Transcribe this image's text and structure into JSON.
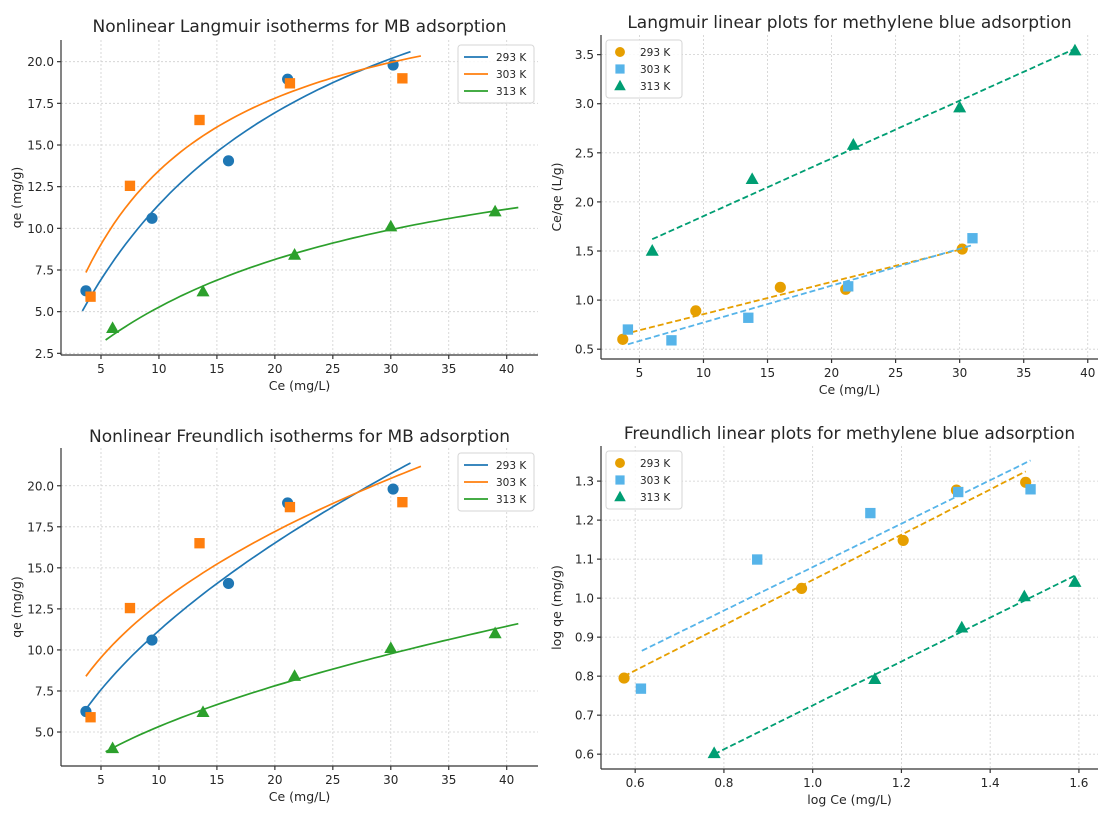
{
  "figure": {
    "description": "Four-panel figure of methylene blue adsorption isotherms"
  },
  "chart_data": [
    {
      "id": "langmuir-nonlinear",
      "type": "scatter",
      "title": "Nonlinear Langmuir isotherms for MB adsorption",
      "xlabel": "Ce (mg/L)",
      "ylabel": "qe (mg/g)",
      "xlim": [
        1.55,
        42.7
      ],
      "ylim": [
        2.4,
        21.3
      ],
      "xticks": [
        5,
        10,
        15,
        20,
        25,
        30,
        35,
        40
      ],
      "xtick_labels": [
        "5",
        "10",
        "15",
        "20",
        "25",
        "30",
        "35",
        "40"
      ],
      "yticks": [
        2.5,
        5.0,
        7.5,
        10.0,
        12.5,
        15.0,
        17.5,
        20.0
      ],
      "ytick_labels": [
        "2.5",
        "5.0",
        "7.5",
        "10.0",
        "12.5",
        "15.0",
        "17.5",
        "20.0"
      ],
      "grid": true,
      "legend": {
        "placement": "top-right",
        "style": "line"
      },
      "fit_model": "langmuir",
      "series": [
        {
          "name": "293 K",
          "color": "#1f77b4",
          "marker": "circle",
          "x": [
            3.7,
            9.4,
            16.0,
            21.1,
            30.2
          ],
          "y": [
            6.25,
            10.6,
            14.05,
            18.95,
            19.8
          ],
          "fit": {
            "qm": 32.7,
            "K": 0.0537,
            "x_range": [
              3.4,
              31.7
            ]
          }
        },
        {
          "name": "303 K",
          "color": "#ff7f0e",
          "marker": "square",
          "x": [
            4.1,
            7.5,
            13.5,
            21.3,
            31.0
          ],
          "y": [
            5.9,
            12.55,
            16.5,
            18.7,
            19.0
          ],
          "fit": {
            "qm": 26.3,
            "K": 0.1048,
            "x_range": [
              3.7,
              32.6
            ]
          }
        },
        {
          "name": "313 K",
          "color": "#2ca02c",
          "marker": "triangle",
          "x": [
            6.0,
            13.8,
            21.7,
            30.0,
            39.0
          ],
          "y": [
            4.0,
            6.2,
            8.4,
            10.1,
            11.0
          ],
          "fit": {
            "qm": 17.73,
            "K": 0.04235,
            "x_range": [
              5.4,
              41.0
            ]
          }
        }
      ]
    },
    {
      "id": "langmuir-linear",
      "type": "scatter",
      "title": "Langmuir linear plots for methylene blue adsorption",
      "xlabel": "Ce (mg/L)",
      "ylabel": "Ce/qe (L/g)",
      "xlim": [
        2.0,
        40.8
      ],
      "ylim": [
        0.4,
        3.7
      ],
      "xticks": [
        5,
        10,
        15,
        20,
        25,
        30,
        35,
        40
      ],
      "xtick_labels": [
        "5",
        "10",
        "15",
        "20",
        "25",
        "30",
        "35",
        "40"
      ],
      "yticks": [
        0.5,
        1.0,
        1.5,
        2.0,
        2.5,
        3.0,
        3.5
      ],
      "ytick_labels": [
        "0.5",
        "1.0",
        "1.5",
        "2.0",
        "2.5",
        "3.0",
        "3.5"
      ],
      "grid": true,
      "legend": {
        "placement": "top-left",
        "style": "marker"
      },
      "fit_model": "linear",
      "series": [
        {
          "name": "293 K",
          "color": "#e69f00",
          "marker": "circle",
          "x": [
            3.7,
            9.4,
            16.0,
            21.1,
            30.2
          ],
          "y": [
            0.6,
            0.89,
            1.13,
            1.11,
            1.52
          ],
          "fit": {
            "slope": 0.0328,
            "intercept": 0.529,
            "x_range": [
              3.7,
              30.2
            ]
          }
        },
        {
          "name": "303 K",
          "color": "#56b4e9",
          "marker": "square",
          "x": [
            4.1,
            7.5,
            13.5,
            21.3,
            31.0
          ],
          "y": [
            0.7,
            0.59,
            0.82,
            1.14,
            1.63
          ],
          "fit": {
            "slope": 0.03755,
            "intercept": 0.396,
            "x_range": [
              4.1,
              31.0
            ]
          }
        },
        {
          "name": "313 K",
          "color": "#009e73",
          "marker": "triangle",
          "x": [
            6.0,
            13.8,
            21.7,
            30.0,
            39.0
          ],
          "y": [
            1.5,
            2.23,
            2.58,
            2.96,
            3.54
          ],
          "fit": {
            "slope": 0.0588,
            "intercept": 1.267,
            "x_range": [
              6.0,
              39.0
            ]
          }
        }
      ]
    },
    {
      "id": "freundlich-nonlinear",
      "type": "scatter",
      "title": "Nonlinear Freundlich isotherms for MB adsorption",
      "xlabel": "Ce (mg/L)",
      "ylabel": "qe (mg/g)",
      "xlim": [
        1.55,
        42.7
      ],
      "ylim": [
        2.93,
        22.3
      ],
      "xticks": [
        5,
        10,
        15,
        20,
        25,
        30,
        35,
        40
      ],
      "xtick_labels": [
        "5",
        "10",
        "15",
        "20",
        "25",
        "30",
        "35",
        "40"
      ],
      "yticks": [
        5.0,
        7.5,
        10.0,
        12.5,
        15.0,
        17.5,
        20.0
      ],
      "ytick_labels": [
        "5.0",
        "7.5",
        "10.0",
        "12.5",
        "15.0",
        "17.5",
        "20.0"
      ],
      "grid": true,
      "legend": {
        "placement": "top-right",
        "style": "line"
      },
      "fit_model": "freundlich",
      "series": [
        {
          "name": "293 K",
          "color": "#1f77b4",
          "marker": "circle",
          "x": [
            3.7,
            9.4,
            16.0,
            21.1,
            30.2
          ],
          "y": [
            6.25,
            10.6,
            14.05,
            18.95,
            19.8
          ],
          "fit": {
            "KF": 3.066,
            "inv_n": 0.562,
            "x_range": [
              3.5,
              31.7
            ]
          }
        },
        {
          "name": "303 K",
          "color": "#ff7f0e",
          "marker": "square",
          "x": [
            4.1,
            7.5,
            13.5,
            21.3,
            31.0
          ],
          "y": [
            5.9,
            12.55,
            16.5,
            18.7,
            19.0
          ],
          "fit": {
            "KF": 4.81,
            "inv_n": 0.4255,
            "x_range": [
              3.7,
              32.6
            ]
          }
        },
        {
          "name": "313 K",
          "color": "#2ca02c",
          "marker": "triangle",
          "x": [
            6.0,
            13.8,
            21.7,
            30.0,
            39.0
          ],
          "y": [
            4.0,
            6.2,
            8.4,
            10.1,
            11.0
          ],
          "fit": {
            "KF": 1.501,
            "inv_n": 0.5506,
            "x_range": [
              5.4,
              41.0
            ]
          }
        }
      ]
    },
    {
      "id": "freundlich-linear",
      "type": "scatter",
      "title": "Freundlich linear plots for methylene blue adsorption",
      "xlabel": "log Ce (mg/L)",
      "ylabel": "log qe (mg/g)",
      "xlim": [
        0.523,
        1.643
      ],
      "ylim": [
        0.562,
        1.39
      ],
      "xticks": [
        0.6,
        0.8,
        1.0,
        1.2,
        1.4,
        1.6
      ],
      "xtick_labels": [
        "0.6",
        "0.8",
        "1.0",
        "1.2",
        "1.4",
        "1.6"
      ],
      "yticks": [
        0.6,
        0.7,
        0.8,
        0.9,
        1.0,
        1.1,
        1.2,
        1.3
      ],
      "ytick_labels": [
        "0.6",
        "0.7",
        "0.8",
        "0.9",
        "1.0",
        "1.1",
        "1.2",
        "1.3"
      ],
      "grid": true,
      "legend": {
        "placement": "top-left",
        "style": "marker"
      },
      "fit_model": "linear",
      "series": [
        {
          "name": "293 K",
          "color": "#e69f00",
          "marker": "circle",
          "x": [
            0.575,
            0.975,
            1.204,
            1.324,
            1.48
          ],
          "y": [
            0.795,
            1.025,
            1.148,
            1.277,
            1.297
          ],
          "fit": {
            "slope": 0.58,
            "intercept": 0.4665,
            "x_range": [
              0.575,
              1.48
            ]
          }
        },
        {
          "name": "303 K",
          "color": "#56b4e9",
          "marker": "square",
          "x": [
            0.613,
            0.875,
            1.13,
            1.328,
            1.491
          ],
          "y": [
            0.768,
            1.099,
            1.218,
            1.272,
            1.279
          ],
          "fit": {
            "slope": 0.557,
            "intercept": 0.5225,
            "x_range": [
              0.615,
              1.491
            ]
          }
        },
        {
          "name": "313 K",
          "color": "#009e73",
          "marker": "triangle",
          "x": [
            0.778,
            1.14,
            1.336,
            1.477,
            1.591
          ],
          "y": [
            0.602,
            0.792,
            0.924,
            1.004,
            1.041
          ],
          "fit": {
            "slope": 0.563,
            "intercept": 0.162,
            "x_range": [
              0.778,
              1.591
            ]
          }
        }
      ]
    }
  ]
}
